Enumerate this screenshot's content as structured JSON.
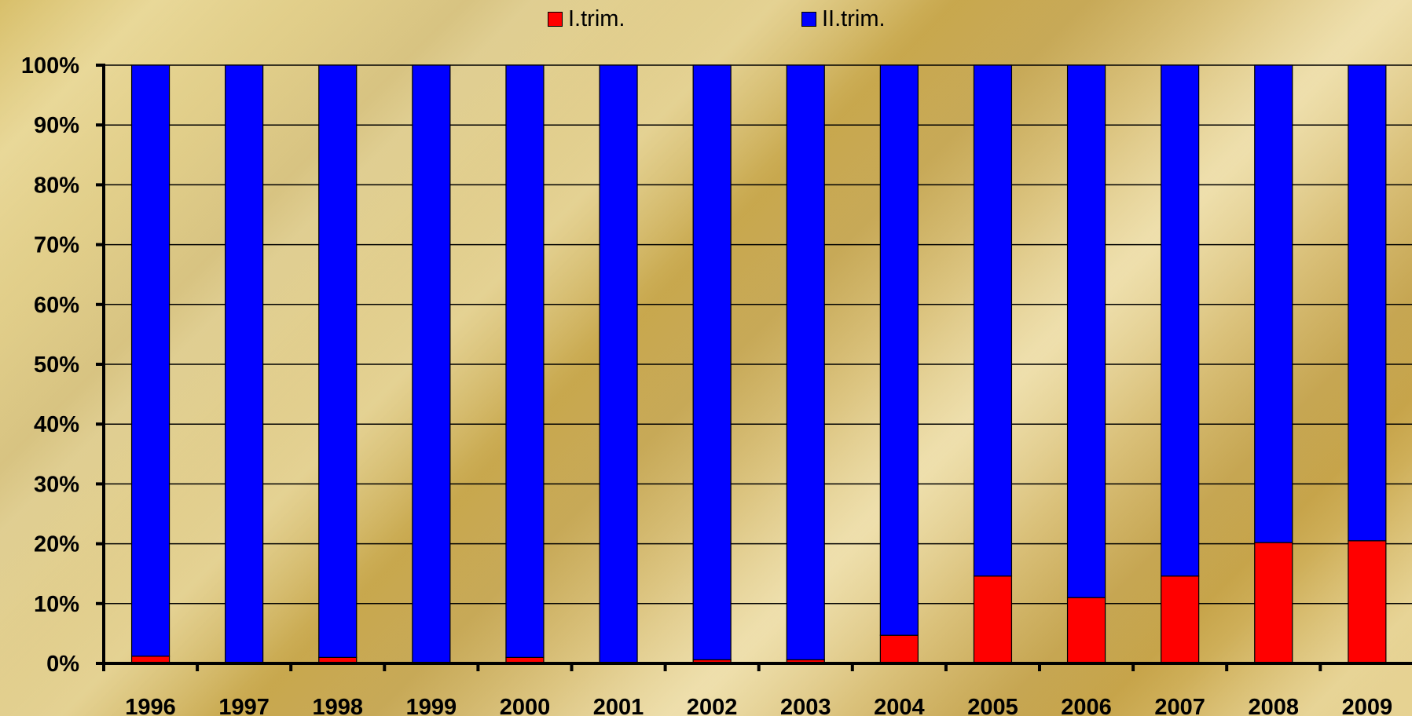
{
  "chart_data": {
    "type": "bar",
    "stacked": true,
    "percent": true,
    "categories": [
      "1996",
      "1997",
      "1998",
      "1999",
      "2000",
      "2001",
      "2002",
      "2003",
      "2004",
      "2005",
      "2006",
      "2007",
      "2008",
      "2009"
    ],
    "series": [
      {
        "name": "I.trim.",
        "color": "#ff0000",
        "values": [
          1.2,
          0,
          1.0,
          0,
          1.0,
          0,
          0.6,
          0.6,
          4.7,
          14.6,
          11.0,
          14.6,
          20.2,
          20.5
        ]
      },
      {
        "name": "II.trim.",
        "color": "#0000ff",
        "values": [
          98.8,
          100,
          99.0,
          100,
          99.0,
          100,
          99.4,
          99.4,
          95.3,
          85.4,
          89.0,
          85.4,
          79.8,
          79.5
        ]
      }
    ],
    "y_ticks": [
      "0%",
      "10%",
      "20%",
      "30%",
      "40%",
      "50%",
      "60%",
      "70%",
      "80%",
      "90%",
      "100%"
    ],
    "ylim": [
      0,
      100
    ],
    "grid": true,
    "legend_position": "top-center"
  }
}
